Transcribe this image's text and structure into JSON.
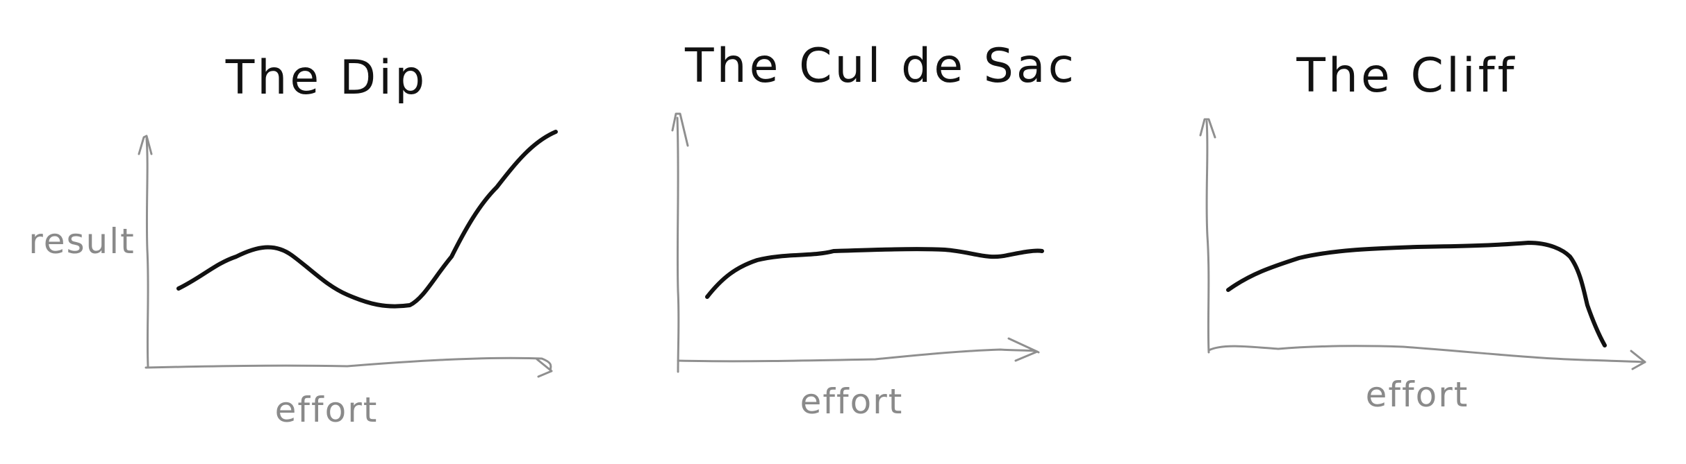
{
  "panels": [
    {
      "title": "The Dip",
      "xlabel": "effort",
      "ylabel": "result"
    },
    {
      "title": "The Cul de Sac",
      "xlabel": "effort",
      "ylabel": ""
    },
    {
      "title": "The Cliff",
      "xlabel": "effort",
      "ylabel": ""
    }
  ],
  "colors": {
    "curve": "#111111",
    "axis": "#8f8f8f",
    "label": "#8a8a8a",
    "background": "#ffffff"
  }
}
